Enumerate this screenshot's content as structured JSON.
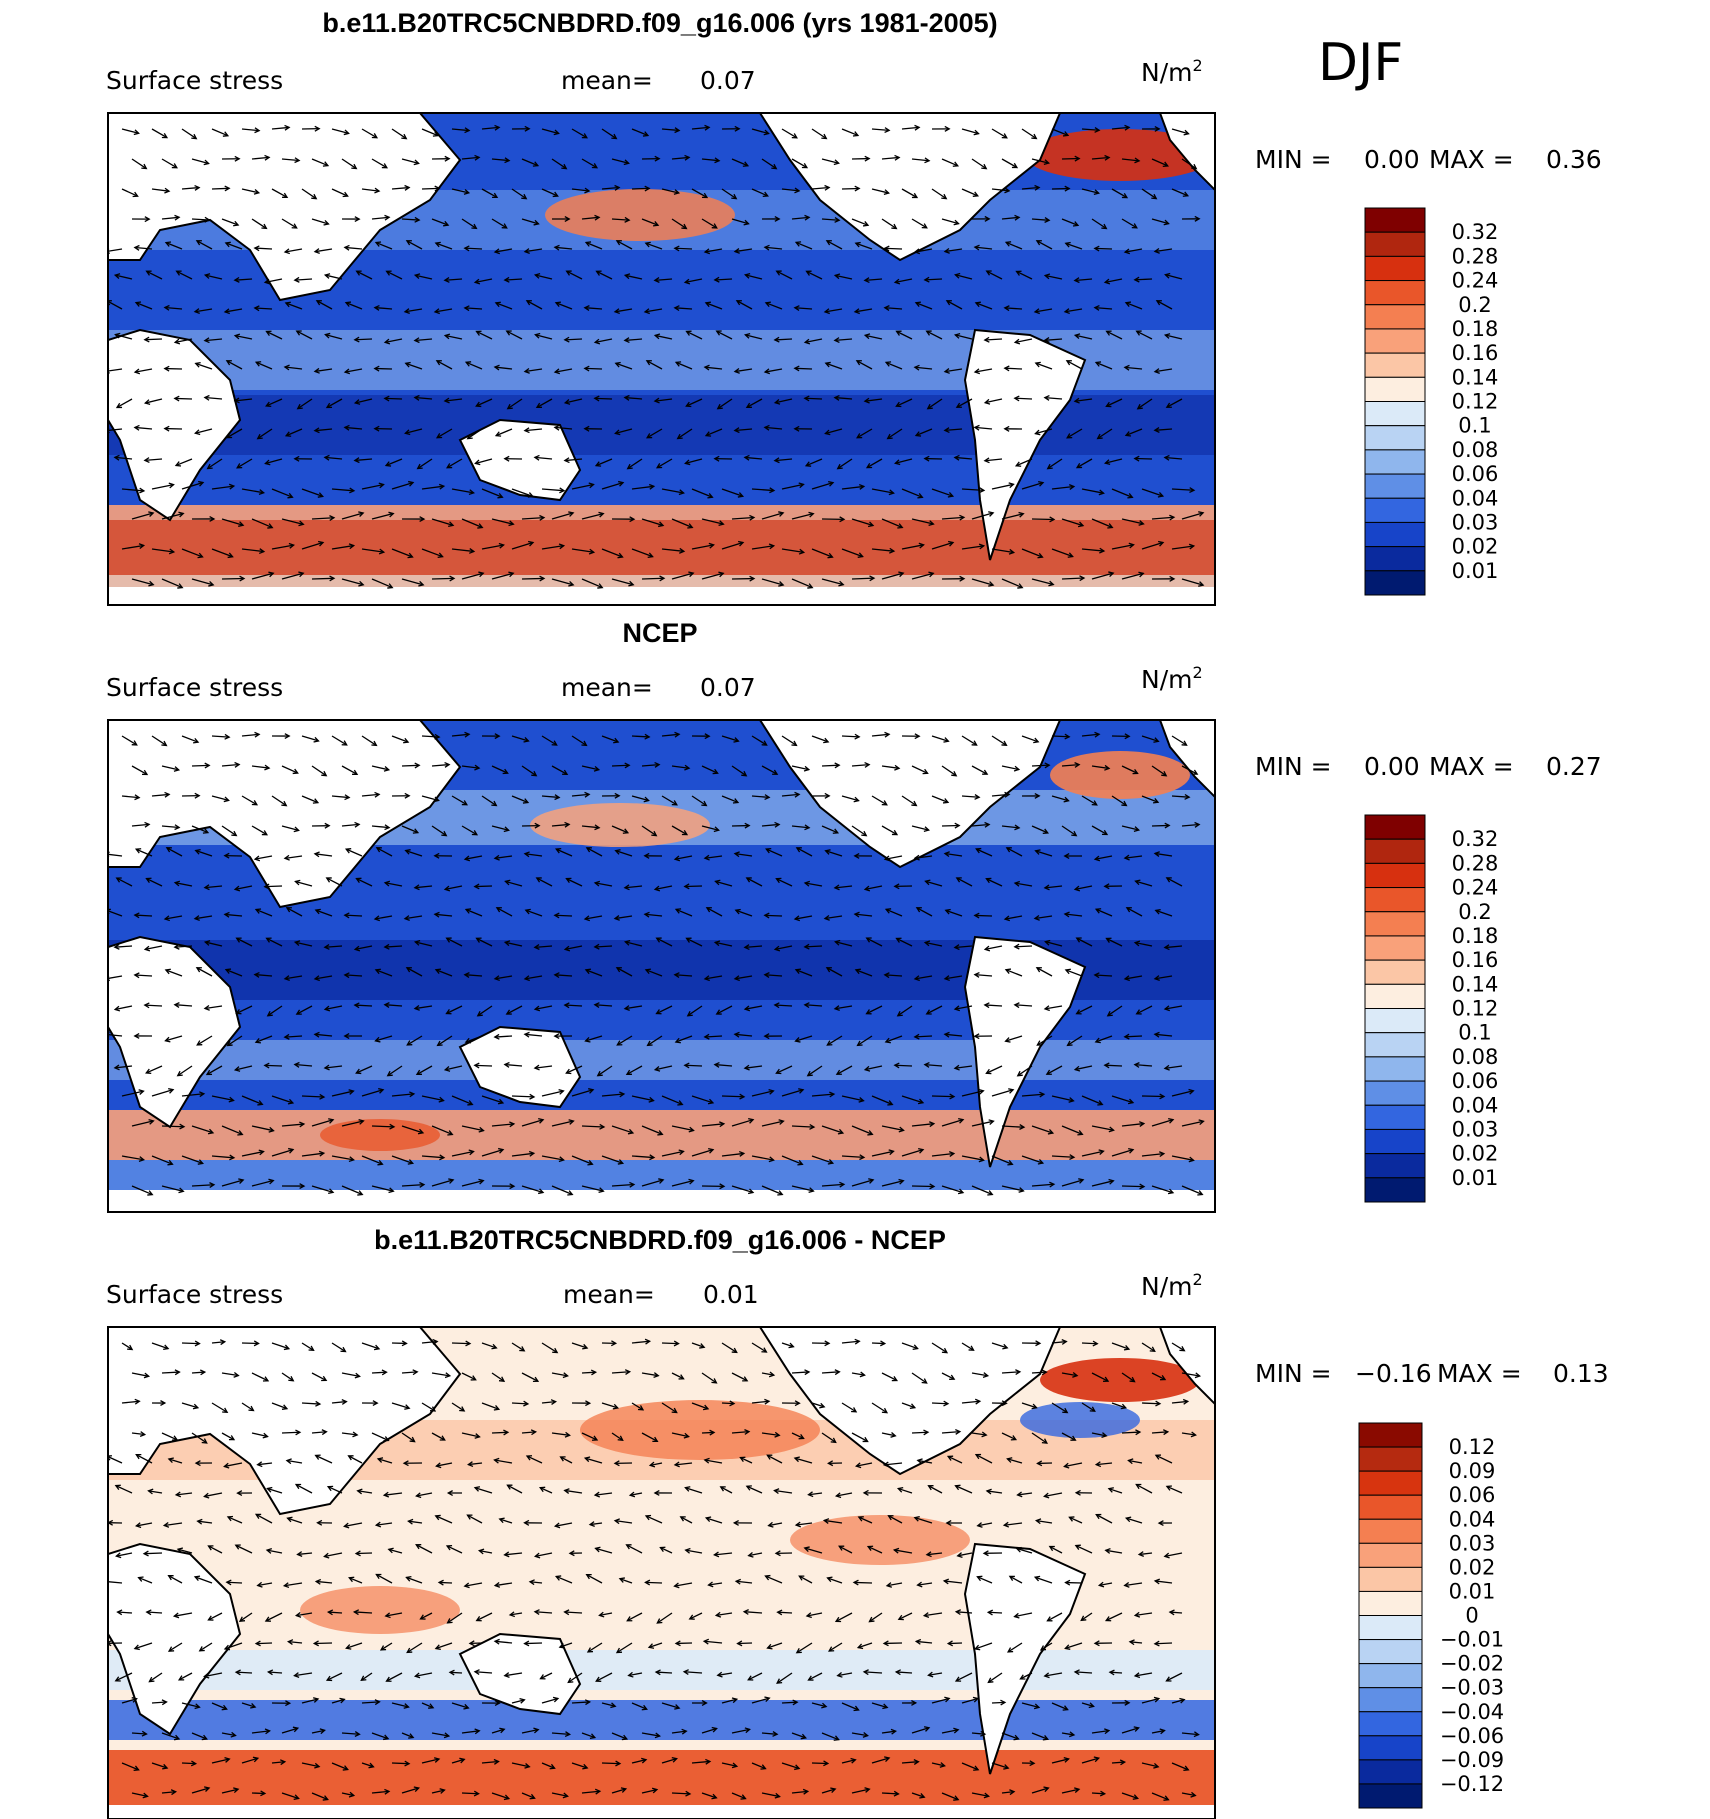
{
  "figure": {
    "season": "DJF",
    "units_text": "N/m",
    "units_exponent": "2"
  },
  "chart_data": [
    {
      "type": "heatmap",
      "title": "b.e11.B20TRC5CNBDRD.f09_g16.006 (yrs 1981-2005)",
      "variable": "Surface stress",
      "mean_label": "mean=",
      "mean_value": "0.07",
      "stats": {
        "min_label": "MIN =",
        "min_value": "0.00",
        "max_label": "MAX =",
        "max_value": "0.36"
      },
      "overlay": "vector arrows (wind stress direction)",
      "colorbar": {
        "labels": [
          "0.32",
          "0.28",
          "0.24",
          "0.2",
          "0.18",
          "0.16",
          "0.14",
          "0.12",
          "0.1",
          "0.08",
          "0.06",
          "0.04",
          "0.03",
          "0.02",
          "0.01"
        ],
        "colors": [
          "#7f0000",
          "#b0260f",
          "#d7300f",
          "#e9562a",
          "#f47f51",
          "#f9a17a",
          "#fbc6a6",
          "#fdeee0",
          "#dbeaf8",
          "#b9d3f3",
          "#8fb6ed",
          "#5f8fe6",
          "#3366e0",
          "#1744c9",
          "#0a2a9e",
          "#001a70"
        ]
      }
    },
    {
      "type": "heatmap",
      "title": "NCEP",
      "variable": "Surface stress",
      "mean_label": "mean=",
      "mean_value": "0.07",
      "stats": {
        "min_label": "MIN =",
        "min_value": "0.00",
        "max_label": "MAX =",
        "max_value": "0.27"
      },
      "overlay": "vector arrows (wind stress direction)",
      "colorbar": {
        "labels": [
          "0.32",
          "0.28",
          "0.24",
          "0.2",
          "0.18",
          "0.16",
          "0.14",
          "0.12",
          "0.1",
          "0.08",
          "0.06",
          "0.04",
          "0.03",
          "0.02",
          "0.01"
        ],
        "colors": [
          "#7f0000",
          "#b0260f",
          "#d7300f",
          "#e9562a",
          "#f47f51",
          "#f9a17a",
          "#fbc6a6",
          "#fdeee0",
          "#dbeaf8",
          "#b9d3f3",
          "#8fb6ed",
          "#5f8fe6",
          "#3366e0",
          "#1744c9",
          "#0a2a9e",
          "#001a70"
        ]
      }
    },
    {
      "type": "heatmap",
      "title": "b.e11.B20TRC5CNBDRD.f09_g16.006 - NCEP",
      "variable": "Surface stress",
      "mean_label": "mean=",
      "mean_value": "0.01",
      "stats": {
        "min_label": "MIN =",
        "min_value": "−0.16",
        "max_label": "MAX =",
        "max_value": "0.13"
      },
      "overlay": "vector arrows (wind stress difference)",
      "colorbar": {
        "labels": [
          "0.12",
          "0.09",
          "0.06",
          "0.04",
          "0.03",
          "0.02",
          "0.01",
          "0",
          "−0.01",
          "−0.02",
          "−0.03",
          "−0.04",
          "−0.06",
          "−0.09",
          "−0.12"
        ],
        "colors": [
          "#8a0a00",
          "#b52a10",
          "#d7340f",
          "#e9562a",
          "#f47f51",
          "#f9a17a",
          "#fbc6a6",
          "#fdeee0",
          "#dbeaf8",
          "#b9d3f3",
          "#8fb6ed",
          "#5f8fe6",
          "#3366e0",
          "#1744c9",
          "#0a2a9e",
          "#001a70"
        ]
      }
    }
  ]
}
